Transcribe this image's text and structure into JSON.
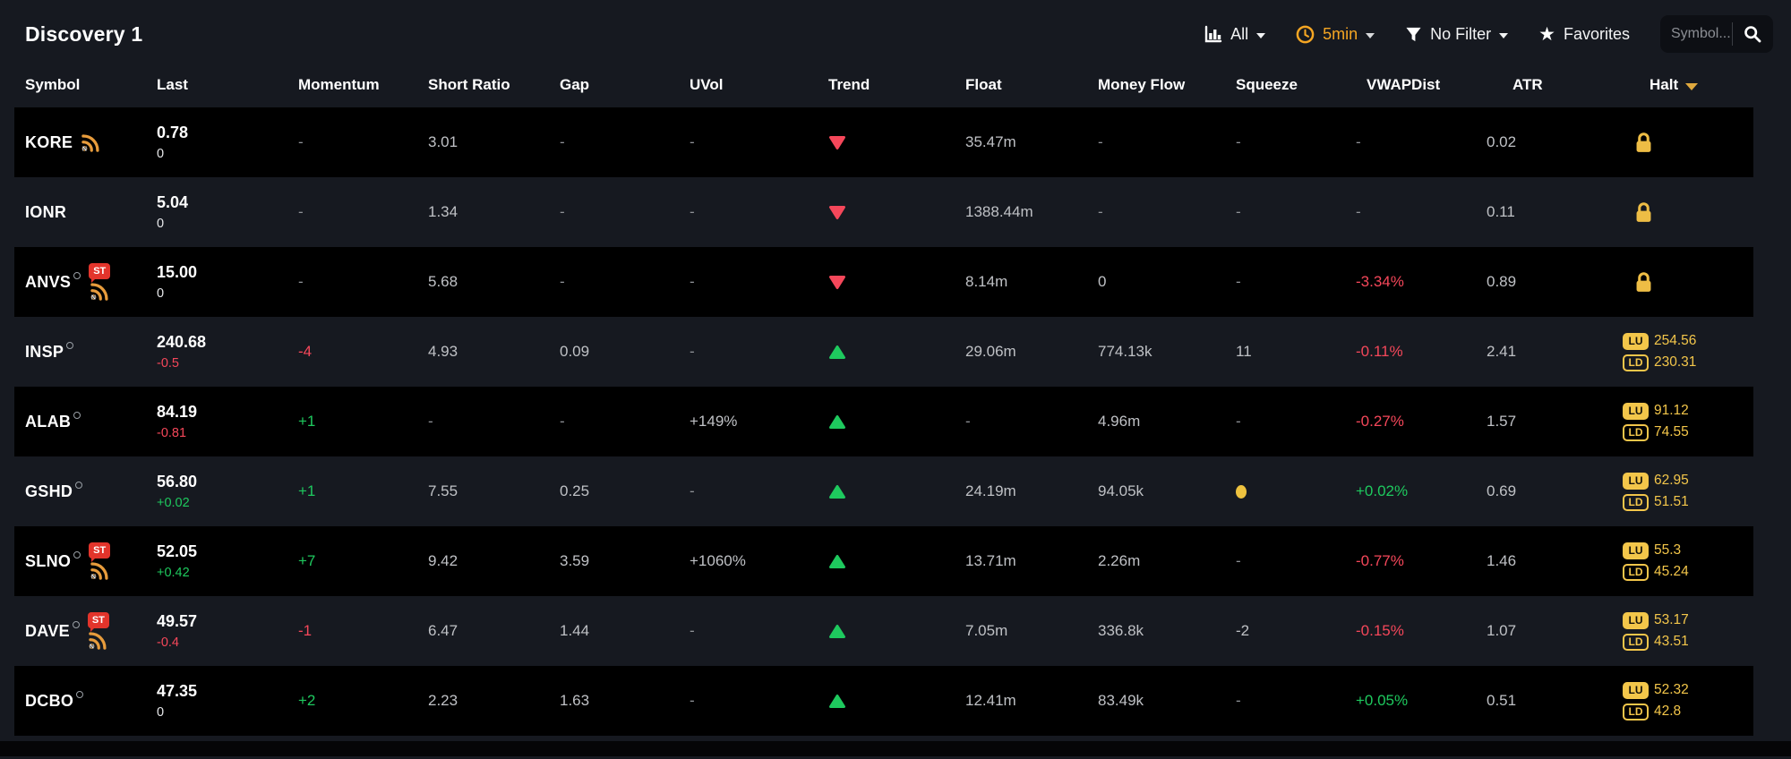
{
  "title": "Discovery 1",
  "toolbar": {
    "scope": {
      "label": "All",
      "icon": "bar-chart-icon"
    },
    "timeframe": {
      "label": "5min",
      "icon": "clock-icon",
      "color": "#f5a623"
    },
    "filter": {
      "label": "No Filter",
      "icon": "filter-icon"
    },
    "favorites": {
      "label": "Favorites",
      "icon": "star-icon"
    },
    "search": {
      "placeholder": "Symbol...",
      "icon": "search-icon"
    }
  },
  "colors": {
    "page_bg": "#161920",
    "row_black": "#000000",
    "green": "#1ec95e",
    "red": "#f5475a",
    "amber": "#f3c64a",
    "orange": "#f5a623",
    "st_red": "#e3342b"
  },
  "table": {
    "headers": [
      "Symbol",
      "Last",
      "Momentum",
      "Short Ratio",
      "Gap",
      "UVol",
      "Trend",
      "Float",
      "Money Flow",
      "Squeeze",
      "VWAPDist",
      "ATR",
      "Halt"
    ],
    "sort": {
      "column": "Halt",
      "direction": "desc"
    },
    "rows": [
      {
        "symbol": "KORE",
        "has_circle": false,
        "badges": [
          "news"
        ],
        "last": "0.78",
        "change": "0",
        "change_dir": "flat",
        "momentum": "-",
        "momentum_dir": "none",
        "short_ratio": "3.01",
        "gap": "-",
        "uvol": "-",
        "trend": "down",
        "float": "35.47m",
        "money_flow": "-",
        "squeeze": "-",
        "vwap_dist": "-",
        "vwap_dir": "none",
        "atr": "0.02",
        "halt": {
          "type": "lock"
        }
      },
      {
        "symbol": "IONR",
        "has_circle": false,
        "badges": [],
        "last": "5.04",
        "change": "0",
        "change_dir": "flat",
        "momentum": "-",
        "momentum_dir": "none",
        "short_ratio": "1.34",
        "gap": "-",
        "uvol": "-",
        "trend": "down",
        "float": "1388.44m",
        "money_flow": "-",
        "squeeze": "-",
        "vwap_dist": "-",
        "vwap_dir": "none",
        "atr": "0.11",
        "halt": {
          "type": "lock"
        }
      },
      {
        "symbol": "ANVS",
        "has_circle": true,
        "badges": [
          "st",
          "news"
        ],
        "last": "15.00",
        "change": "0",
        "change_dir": "flat",
        "momentum": "-",
        "momentum_dir": "none",
        "short_ratio": "5.68",
        "gap": "-",
        "uvol": "-",
        "trend": "down",
        "float": "8.14m",
        "money_flow": "0",
        "squeeze": "-",
        "vwap_dist": "-3.34%",
        "vwap_dir": "neg",
        "atr": "0.89",
        "halt": {
          "type": "lock"
        }
      },
      {
        "symbol": "INSP",
        "has_circle": true,
        "badges": [],
        "last": "240.68",
        "change": "-0.5",
        "change_dir": "neg",
        "momentum": "-4",
        "momentum_dir": "neg",
        "short_ratio": "4.93",
        "gap": "0.09",
        "uvol": "-",
        "trend": "up",
        "float": "29.06m",
        "money_flow": "774.13k",
        "squeeze": "11",
        "vwap_dist": "-0.11%",
        "vwap_dir": "neg",
        "atr": "2.41",
        "halt": {
          "type": "limits",
          "lu": "254.56",
          "ld": "230.31"
        }
      },
      {
        "symbol": "ALAB",
        "has_circle": true,
        "badges": [],
        "last": "84.19",
        "change": "-0.81",
        "change_dir": "neg",
        "momentum": "+1",
        "momentum_dir": "pos",
        "short_ratio": "-",
        "gap": "-",
        "uvol": "+149%",
        "trend": "up",
        "float": "-",
        "money_flow": "4.96m",
        "squeeze": "-",
        "vwap_dist": "-0.27%",
        "vwap_dir": "neg",
        "atr": "1.57",
        "halt": {
          "type": "limits",
          "lu": "91.12",
          "ld": "74.55"
        }
      },
      {
        "symbol": "GSHD",
        "has_circle": true,
        "badges": [],
        "last": "56.80",
        "change": "+0.02",
        "change_dir": "pos",
        "momentum": "+1",
        "momentum_dir": "pos",
        "short_ratio": "7.55",
        "gap": "0.25",
        "uvol": "-",
        "trend": "up",
        "float": "24.19m",
        "money_flow": "94.05k",
        "squeeze": "dot",
        "vwap_dist": "+0.02%",
        "vwap_dir": "pos",
        "atr": "0.69",
        "halt": {
          "type": "limits",
          "lu": "62.95",
          "ld": "51.51"
        }
      },
      {
        "symbol": "SLNO",
        "has_circle": true,
        "badges": [
          "st",
          "news"
        ],
        "last": "52.05",
        "change": "+0.42",
        "change_dir": "pos",
        "momentum": "+7",
        "momentum_dir": "pos",
        "short_ratio": "9.42",
        "gap": "3.59",
        "uvol": "+1060%",
        "trend": "up",
        "float": "13.71m",
        "money_flow": "2.26m",
        "squeeze": "-",
        "vwap_dist": "-0.77%",
        "vwap_dir": "neg",
        "atr": "1.46",
        "halt": {
          "type": "limits",
          "lu": "55.3",
          "ld": "45.24"
        }
      },
      {
        "symbol": "DAVE",
        "has_circle": true,
        "badges": [
          "st",
          "news"
        ],
        "last": "49.57",
        "change": "-0.4",
        "change_dir": "neg",
        "momentum": "-1",
        "momentum_dir": "neg",
        "short_ratio": "6.47",
        "gap": "1.44",
        "uvol": "-",
        "trend": "up",
        "float": "7.05m",
        "money_flow": "336.8k",
        "squeeze": "-2",
        "vwap_dist": "-0.15%",
        "vwap_dir": "neg",
        "atr": "1.07",
        "halt": {
          "type": "limits",
          "lu": "53.17",
          "ld": "43.51"
        }
      },
      {
        "symbol": "DCBO",
        "has_circle": true,
        "badges": [],
        "last": "47.35",
        "change": "0",
        "change_dir": "flat",
        "momentum": "+2",
        "momentum_dir": "pos",
        "short_ratio": "2.23",
        "gap": "1.63",
        "uvol": "-",
        "trend": "up",
        "float": "12.41m",
        "money_flow": "83.49k",
        "squeeze": "-",
        "vwap_dist": "+0.05%",
        "vwap_dir": "pos",
        "atr": "0.51",
        "halt": {
          "type": "limits",
          "lu": "52.32",
          "ld": "42.8"
        }
      }
    ]
  }
}
